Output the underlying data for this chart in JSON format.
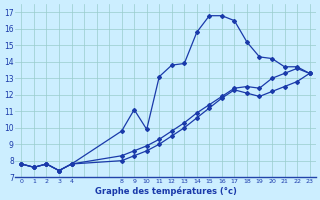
{
  "xlabel": "Graphe des températures (°c)",
  "background_color": "#cceeff",
  "line_color": "#1a3aaa",
  "grid_color": "#99cccc",
  "ylim": [
    7,
    17.5
  ],
  "xlim": [
    -0.5,
    23.5
  ],
  "yticks": [
    7,
    8,
    9,
    10,
    11,
    12,
    13,
    14,
    15,
    16,
    17
  ],
  "xtick_positions": [
    0,
    1,
    2,
    3,
    4,
    5,
    6,
    7,
    8,
    9,
    10,
    11,
    12,
    13,
    14,
    15,
    16,
    17,
    18,
    19,
    20,
    21,
    22,
    23
  ],
  "xtick_labels": [
    "0",
    "1",
    "2",
    "3",
    "4",
    "",
    "",
    "",
    "8",
    "9",
    "10",
    "11",
    "12",
    "13",
    "14",
    "15",
    "16",
    "17",
    "18",
    "19",
    "20",
    "21",
    "22",
    "23"
  ],
  "line1_x": [
    0,
    1,
    2,
    3,
    4,
    8,
    9,
    10,
    11,
    12,
    13,
    14,
    15,
    16,
    17,
    18,
    19,
    20,
    21,
    22,
    23
  ],
  "line1_y": [
    7.8,
    7.6,
    7.8,
    7.4,
    7.8,
    9.8,
    11.1,
    9.9,
    13.1,
    13.8,
    13.9,
    15.8,
    16.8,
    16.8,
    16.5,
    15.2,
    14.3,
    14.2,
    13.7,
    13.7,
    13.3
  ],
  "line2_x": [
    0,
    1,
    2,
    3,
    4,
    8,
    9,
    10,
    11,
    12,
    13,
    14,
    15,
    16,
    17,
    18,
    19,
    20,
    21,
    22,
    23
  ],
  "line2_y": [
    7.8,
    7.6,
    7.8,
    7.4,
    7.8,
    8.3,
    8.6,
    8.9,
    9.3,
    9.8,
    10.3,
    10.9,
    11.4,
    11.9,
    12.4,
    12.5,
    12.4,
    13.0,
    13.3,
    13.6,
    13.3
  ],
  "line3_x": [
    0,
    1,
    2,
    3,
    4,
    8,
    9,
    10,
    11,
    12,
    13,
    14,
    15,
    16,
    17,
    18,
    19,
    20,
    21,
    22,
    23
  ],
  "line3_y": [
    7.8,
    7.6,
    7.8,
    7.4,
    7.8,
    8.0,
    8.3,
    8.6,
    9.0,
    9.5,
    10.0,
    10.6,
    11.2,
    11.8,
    12.3,
    12.1,
    11.9,
    12.2,
    12.5,
    12.8,
    13.3
  ]
}
